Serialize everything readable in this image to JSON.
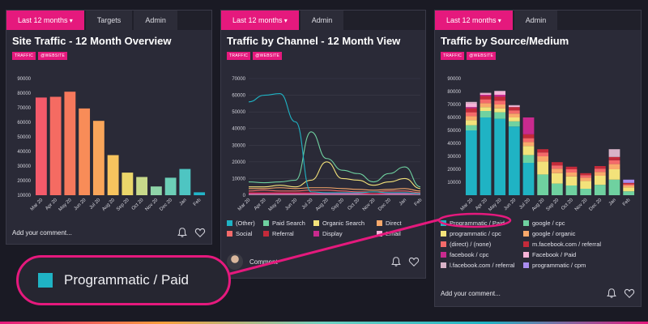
{
  "panels": {
    "p1": {
      "tabs": [
        "Last 12 months",
        "Targets",
        "Admin"
      ],
      "title": "Site Traffic - 12 Month Overview",
      "badges": [
        "TRAFFIC",
        "@WEBSITE"
      ],
      "comment": "Add your comment..."
    },
    "p2": {
      "tabs": [
        "Last 12 months",
        "Admin"
      ],
      "title": "Traffic by Channel - 12 Month View",
      "badges": [
        "TRAFFIC",
        "@WEBSITE"
      ],
      "legend": [
        {
          "label": "(Other)",
          "color": "#1fb3c4"
        },
        {
          "label": "Paid Search",
          "color": "#6fd1a0"
        },
        {
          "label": "Organic Search",
          "color": "#f3e27a"
        },
        {
          "label": "Direct",
          "color": "#f9a96b"
        },
        {
          "label": "Social",
          "color": "#f46a6a"
        },
        {
          "label": "Referral",
          "color": "#c42a3a"
        },
        {
          "label": "Display",
          "color": "#c92a8e"
        },
        {
          "label": "Email",
          "color": "#f6b3d8"
        }
      ],
      "comment": "Comment"
    },
    "p3": {
      "tabs": [
        "Last 12 months",
        "Admin"
      ],
      "title": "Traffic by Source/Medium",
      "badges": [
        "TRAFFIC",
        "@WEBSITE"
      ],
      "legend": [
        {
          "label": "Programmatic / Paid",
          "color": "#1fb3c4"
        },
        {
          "label": "google / cpc",
          "color": "#6fd1a0"
        },
        {
          "label": "programmatic / cpc",
          "color": "#f3e27a"
        },
        {
          "label": "google / organic",
          "color": "#f9a96b"
        },
        {
          "label": "(direct) / (none)",
          "color": "#f46a6a"
        },
        {
          "label": "m.facebook.com / referral",
          "color": "#c42a3a"
        },
        {
          "label": "facebook / cpc",
          "color": "#c92a8e"
        },
        {
          "label": "Facebook / Paid",
          "color": "#f6b3d8"
        },
        {
          "label": "l.facebook.com / referral",
          "color": "#d9b3c8"
        },
        {
          "label": "programmatic / cpm",
          "color": "#a98df0"
        }
      ],
      "comment": "Add your comment..."
    }
  },
  "callout": {
    "label": "Programmatic / Paid",
    "color": "#1fb3c4"
  },
  "chart_data": [
    {
      "type": "bar",
      "title": "Site Traffic - 12 Month Overview",
      "categories": [
        "Mar 20",
        "Apr 20",
        "May 20",
        "Jun 20",
        "Jul 20",
        "Aug 20",
        "Sep 20",
        "Oct 20",
        "Nov 20",
        "Dec 20",
        "Jan",
        "Feb"
      ],
      "values": [
        77000,
        77500,
        81000,
        69500,
        61000,
        37500,
        25500,
        22500,
        16000,
        22000,
        28000,
        12000
      ],
      "colors": [
        "#f45a6a",
        "#f56b62",
        "#f6785c",
        "#f88c58",
        "#f9a55a",
        "#f7c45e",
        "#ebd66a",
        "#c8d98a",
        "#8fd4a8",
        "#6ccfb7",
        "#4ec5c2",
        "#22b5c8"
      ],
      "ylim": [
        10000,
        90000
      ],
      "yticks": [
        10000,
        20000,
        30000,
        40000,
        50000,
        60000,
        70000,
        80000,
        90000
      ],
      "grid": false
    },
    {
      "type": "line",
      "title": "Traffic by Channel - 12 Month View",
      "x": [
        "Mar 20",
        "Apr 20",
        "May 20",
        "Jun 20",
        "Jul 20",
        "Aug 20",
        "Sep 20",
        "Oct 20",
        "Nov 20",
        "Dec 20",
        "Jan",
        "Feb"
      ],
      "ylim": [
        0,
        70000
      ],
      "yticks": [
        0,
        10000,
        20000,
        30000,
        40000,
        50000,
        60000,
        70000
      ],
      "series": [
        {
          "name": "(Other)",
          "color": "#1fb3c4",
          "values": [
            56000,
            60000,
            61000,
            44000,
            2000,
            1500,
            1500,
            1500,
            2000,
            1500,
            1500,
            1000
          ]
        },
        {
          "name": "Paid Search",
          "color": "#6fd1a0",
          "values": [
            8000,
            7500,
            8000,
            9000,
            38000,
            22000,
            15000,
            13000,
            8000,
            13000,
            17000,
            5000
          ]
        },
        {
          "name": "Organic Search",
          "color": "#f3e27a",
          "values": [
            5000,
            5000,
            6000,
            5000,
            9000,
            20000,
            10000,
            9000,
            6000,
            8000,
            10000,
            4000
          ]
        },
        {
          "name": "Direct",
          "color": "#f9a96b",
          "values": [
            4000,
            4000,
            4500,
            4000,
            4500,
            4500,
            4000,
            3500,
            3000,
            3500,
            4000,
            2500
          ]
        },
        {
          "name": "Social",
          "color": "#f46a6a",
          "values": [
            2500,
            3000,
            2500,
            2500,
            3000,
            3000,
            2500,
            2000,
            2000,
            2500,
            2500,
            1500
          ]
        },
        {
          "name": "Referral",
          "color": "#c42a3a",
          "values": [
            1500,
            1500,
            1500,
            1500,
            1500,
            1500,
            1500,
            1500,
            1000,
            1500,
            1500,
            1000
          ]
        },
        {
          "name": "Display",
          "color": "#c92a8e",
          "values": [
            1000,
            1000,
            1000,
            1000,
            1000,
            1000,
            1000,
            1000,
            800,
            1000,
            1000,
            800
          ]
        },
        {
          "name": "Email",
          "color": "#f6b3d8",
          "values": [
            500,
            500,
            500,
            500,
            500,
            500,
            500,
            500,
            500,
            500,
            500,
            500
          ]
        }
      ],
      "grid": true
    },
    {
      "type": "bar",
      "stacked": true,
      "title": "Traffic by Source/Medium",
      "categories": [
        "Mar 20",
        "Apr 20",
        "May 20",
        "Jun 20",
        "Jul 20",
        "Aug 20",
        "Sep 20",
        "Oct 20",
        "Nov 20",
        "Dec 20",
        "Jan",
        "Feb"
      ],
      "ylim": [
        0,
        90000
      ],
      "yticks": [
        10000,
        20000,
        30000,
        40000,
        50000,
        60000,
        70000,
        80000,
        90000
      ],
      "series": [
        {
          "name": "Programmatic / Paid",
          "color": "#1fb3c4",
          "values": [
            50000,
            60000,
            59000,
            53000,
            25000,
            0,
            0,
            0,
            0,
            0,
            0,
            0
          ]
        },
        {
          "name": "google / cpc",
          "color": "#6fd1a0",
          "values": [
            4000,
            5000,
            5000,
            4000,
            6000,
            16000,
            9000,
            7500,
            5000,
            8000,
            12000,
            3000
          ]
        },
        {
          "name": "programmatic / cpc",
          "color": "#f3e27a",
          "values": [
            4000,
            3000,
            3000,
            3000,
            7000,
            10000,
            8000,
            7000,
            6000,
            7000,
            8000,
            3000
          ]
        },
        {
          "name": "google / organic",
          "color": "#f9a96b",
          "values": [
            3000,
            3000,
            3000,
            3000,
            3000,
            4000,
            3500,
            3000,
            2500,
            3000,
            4000,
            1500
          ]
        },
        {
          "name": "(direct) / (none)",
          "color": "#f46a6a",
          "values": [
            3000,
            3000,
            3000,
            2500,
            3000,
            3000,
            2500,
            2500,
            2000,
            2500,
            3000,
            1000
          ]
        },
        {
          "name": "m.facebook.com / referral",
          "color": "#c42a3a",
          "values": [
            3000,
            2500,
            3000,
            2500,
            3000,
            2500,
            2500,
            2000,
            1500,
            2000,
            2500,
            1000
          ]
        },
        {
          "name": "facebook / cpc",
          "color": "#c92a8e",
          "values": [
            1000,
            1000,
            1500,
            0,
            13000,
            0,
            0,
            0,
            0,
            0,
            0,
            0
          ]
        },
        {
          "name": "Facebook / Paid",
          "color": "#f6b3d8",
          "values": [
            3000,
            1000,
            2500,
            1000,
            0,
            0,
            0,
            0,
            0,
            0,
            0,
            0
          ]
        },
        {
          "name": "l.facebook.com / referral",
          "color": "#d9b3c8",
          "values": [
            1000,
            500,
            500,
            500,
            0,
            0,
            0,
            0,
            0,
            0,
            6000,
            0
          ]
        },
        {
          "name": "programmatic / cpm",
          "color": "#a98df0",
          "values": [
            0,
            0,
            0,
            0,
            0,
            0,
            0,
            0,
            0,
            0,
            0,
            2500
          ]
        }
      ],
      "grid": false
    }
  ]
}
